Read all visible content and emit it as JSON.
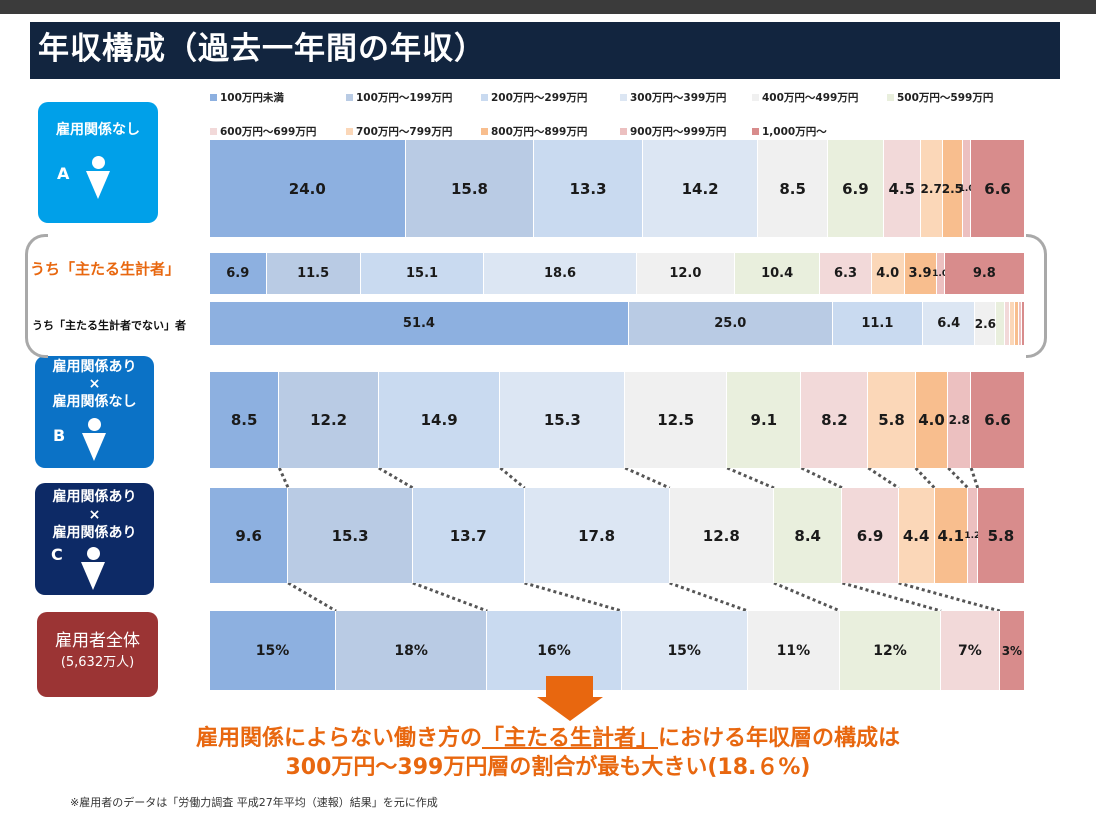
{
  "title": "年収構成（過去一年間の年収）",
  "legend_row1": [
    "100万円未満",
    "100万円～199万円",
    "200万円～299万円",
    "300万円～399万円",
    "400万円～499万円",
    "500万円～599万円"
  ],
  "legend_row2": [
    "600万円～699万円",
    "700万円～799万円",
    "800万円～899万円",
    "900万円～999万円",
    "1,000万円～"
  ],
  "colors": [
    "#8db0e0",
    "#b9cbe4",
    "#c9daf0",
    "#dce6f3",
    "#f0f0f0",
    "#e9efdd",
    "#f2d9d9",
    "#fbd7b8",
    "#f8be8e",
    "#ecc0c0",
    "#d88c8c"
  ],
  "boxes": {
    "a": {
      "line1": "雇用関係なし",
      "letter": "A"
    },
    "b": {
      "line1": "雇用関係あり",
      "line2": "×",
      "line3": "雇用関係なし",
      "letter": "B"
    },
    "c": {
      "line1": "雇用関係あり",
      "line2": "×",
      "line3": "雇用関係あり",
      "letter": "C"
    },
    "total": {
      "line1": "雇用者全体",
      "line2": "(5,632万人)"
    }
  },
  "row_labels": {
    "main_earner": "うち「主たる生計者」",
    "non_main_earner": "うち「主たる生計者でない」者"
  },
  "conclusion_line1_pre": "雇用関係によらない働き方の",
  "conclusion_line1_hl": "「主たる生計者」",
  "conclusion_line1_post": "における年収層の構成は",
  "conclusion_line2": "300万円～399万円層の割合が最も大きい(18.６%)",
  "footnote": "※雇用者のデータは「労働力調査 平成27年平均（速報）結果」を元に作成",
  "chart_data": [
    {
      "type": "bar",
      "name": "雇用関係なし A",
      "values": [
        24.0,
        15.8,
        13.3,
        14.2,
        8.5,
        6.9,
        4.5,
        2.7,
        2.5,
        1.0,
        6.6
      ],
      "labels": [
        "24.0",
        "15.8",
        "13.3",
        "14.2",
        "8.5",
        "6.9",
        "4.5",
        "2.7",
        "2.5",
        "1.0",
        "6.6"
      ]
    },
    {
      "type": "bar",
      "name": "うち「主たる生計者」",
      "values": [
        6.9,
        11.5,
        15.1,
        18.6,
        12.0,
        10.4,
        6.3,
        4.0,
        3.9,
        1.0,
        9.8
      ],
      "labels": [
        "6.9",
        "11.5",
        "15.1",
        "18.6",
        "12.0",
        "10.4",
        "6.3",
        "4.0",
        "3.9",
        "1.0",
        "9.8"
      ]
    },
    {
      "type": "bar",
      "name": "うち「主たる生計者でない」者",
      "values": [
        51.4,
        25.0,
        11.1,
        6.4,
        2.6,
        1.0,
        0.7,
        0.6,
        0.5,
        0.3,
        0.4
      ],
      "labels": [
        "51.4",
        "25.0",
        "11.1",
        "6.4",
        "2.6",
        "",
        "",
        "",
        "",
        "",
        ""
      ]
    },
    {
      "type": "bar",
      "name": "雇用関係あり×雇用関係なし B",
      "values": [
        8.5,
        12.2,
        14.9,
        15.3,
        12.5,
        9.1,
        8.2,
        5.8,
        4.0,
        2.8,
        6.6
      ],
      "labels": [
        "8.5",
        "12.2",
        "14.9",
        "15.3",
        "12.5",
        "9.1",
        "8.2",
        "5.8",
        "4.0",
        "2.8",
        "6.6"
      ]
    },
    {
      "type": "bar",
      "name": "雇用関係あり×雇用関係あり C",
      "values": [
        9.6,
        15.3,
        13.7,
        17.8,
        12.8,
        8.4,
        6.9,
        4.4,
        4.1,
        1.2,
        5.8
      ],
      "labels": [
        "9.6",
        "15.3",
        "13.7",
        "17.8",
        "12.8",
        "8.4",
        "6.9",
        "4.4",
        "4.1",
        "1.2",
        "5.8"
      ]
    },
    {
      "type": "bar",
      "name": "雇用者全体",
      "values": [
        15,
        18,
        16,
        15,
        11,
        12,
        7,
        3
      ],
      "labels": [
        "15%",
        "18%",
        "16%",
        "15%",
        "11%",
        "12%",
        "7%",
        "3%"
      ]
    }
  ]
}
